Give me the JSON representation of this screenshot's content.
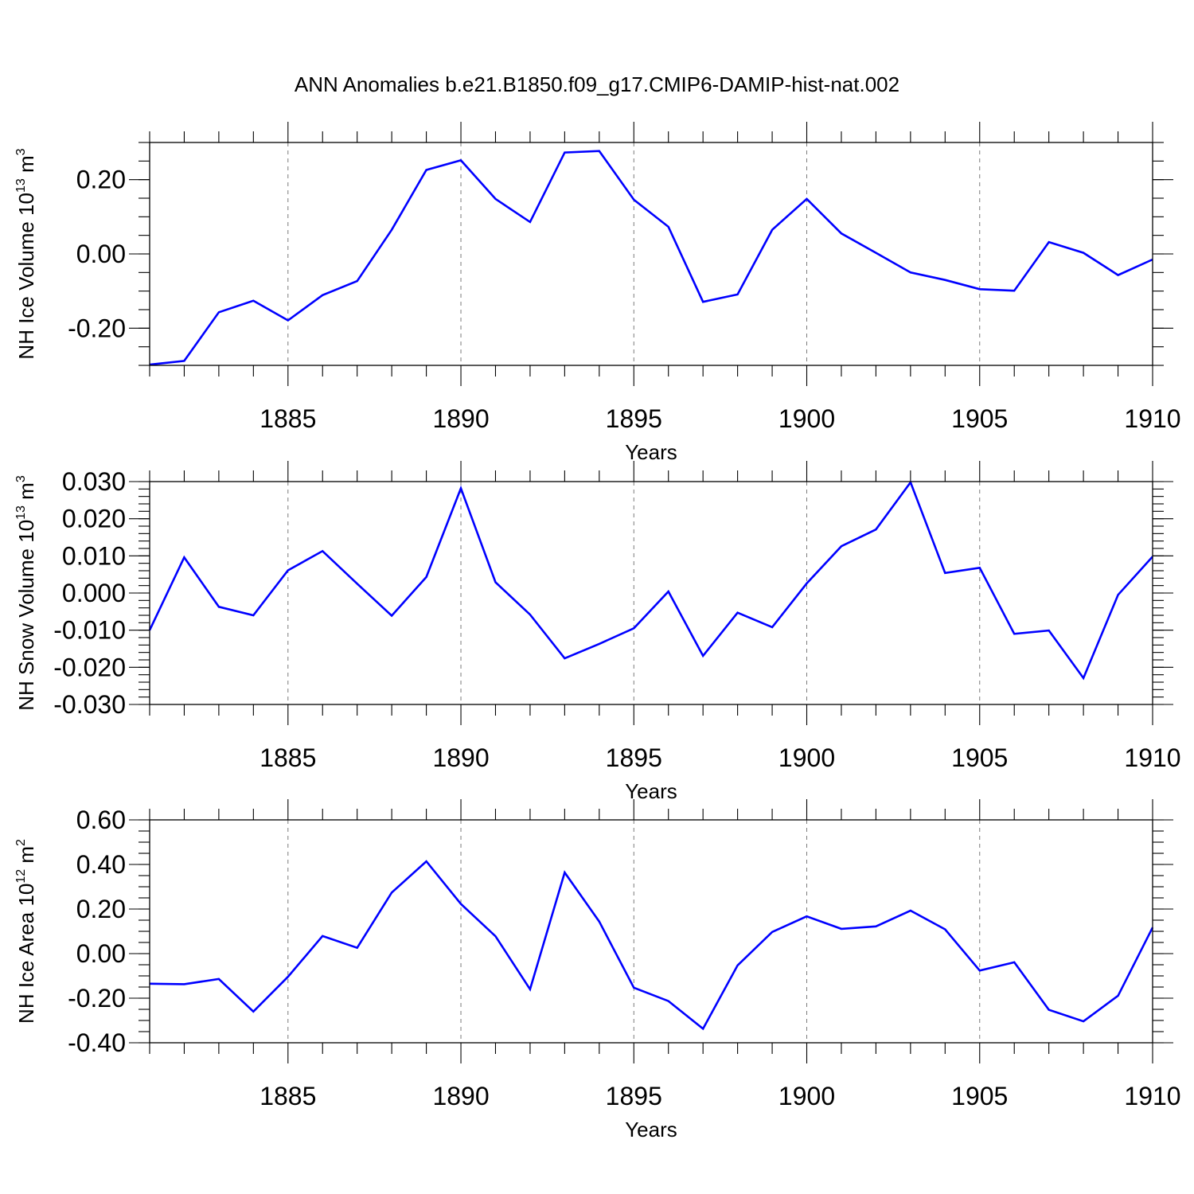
{
  "title": "ANN Anomalies b.e21.B1850.f09_g17.CMIP6-DAMIP-hist-nat.002",
  "line_color": "#0000ff",
  "chart_data": [
    {
      "type": "line",
      "name": "ice-volume",
      "xlabel": "Years",
      "ylabel": {
        "pre": "NH Ice Volume 10",
        "exp": "13",
        "unit": " m",
        "unit_exp": "3"
      },
      "xlim": [
        1881,
        1910
      ],
      "ylim": [
        -0.3,
        0.3
      ],
      "x_ticks": [
        1885,
        1890,
        1895,
        1900,
        1905,
        1910
      ],
      "x_tick_labels": [
        "1885",
        "1890",
        "1895",
        "1900",
        "1905",
        "1910"
      ],
      "y_ticks": [
        -0.2,
        0.0,
        0.2
      ],
      "y_tick_labels": [
        "-0.20",
        "0.00",
        "0.20"
      ],
      "y_minor_step": 0.05,
      "grid_x": [
        1885,
        1890,
        1895,
        1900,
        1905
      ],
      "x": [
        1881,
        1882,
        1883,
        1884,
        1885,
        1886,
        1887,
        1888,
        1889,
        1890,
        1891,
        1892,
        1893,
        1894,
        1895,
        1896,
        1897,
        1898,
        1899,
        1900,
        1901,
        1902,
        1903,
        1904,
        1905,
        1906,
        1907,
        1908,
        1909,
        1910
      ],
      "values": [
        -0.298,
        -0.288,
        -0.157,
        -0.126,
        -0.179,
        -0.111,
        -0.073,
        0.065,
        0.226,
        0.252,
        0.148,
        0.086,
        0.273,
        0.277,
        0.146,
        0.073,
        -0.129,
        -0.109,
        0.065,
        0.148,
        0.055,
        0.003,
        -0.05,
        -0.07,
        -0.095,
        -0.099,
        0.032,
        0.003,
        -0.057,
        -0.015
      ]
    },
    {
      "type": "line",
      "name": "snow-volume",
      "xlabel": "Years",
      "ylabel": {
        "pre": "NH Snow Volume 10",
        "exp": "13",
        "unit": " m",
        "unit_exp": "3"
      },
      "xlim": [
        1881,
        1910
      ],
      "ylim": [
        -0.03,
        0.03
      ],
      "x_ticks": [
        1885,
        1890,
        1895,
        1900,
        1905,
        1910
      ],
      "x_tick_labels": [
        "1885",
        "1890",
        "1895",
        "1900",
        "1905",
        "1910"
      ],
      "y_ticks": [
        -0.03,
        -0.02,
        -0.01,
        0.0,
        0.01,
        0.02,
        0.03
      ],
      "y_tick_labels": [
        "-0.030",
        "-0.020",
        "-0.010",
        "0.000",
        "0.010",
        "0.020",
        "0.030"
      ],
      "y_minor_step": 0.002,
      "grid_x": [
        1885,
        1890,
        1895,
        1900,
        1905
      ],
      "x": [
        1881,
        1882,
        1883,
        1884,
        1885,
        1886,
        1887,
        1888,
        1889,
        1890,
        1891,
        1892,
        1893,
        1894,
        1895,
        1896,
        1897,
        1898,
        1899,
        1900,
        1901,
        1902,
        1903,
        1904,
        1905,
        1906,
        1907,
        1908,
        1909,
        1910
      ],
      "values": [
        -0.01,
        0.0096,
        -0.0037,
        -0.006,
        0.0061,
        0.0113,
        0.0025,
        -0.0061,
        0.0043,
        0.0282,
        0.0029,
        -0.0058,
        -0.0176,
        -0.0137,
        -0.0095,
        0.0004,
        -0.0169,
        -0.0053,
        -0.0092,
        0.0026,
        0.0126,
        0.0171,
        0.0298,
        0.0054,
        0.0068,
        -0.011,
        -0.0101,
        -0.0229,
        -0.0005,
        0.0098
      ]
    },
    {
      "type": "line",
      "name": "ice-area",
      "xlabel": "Years",
      "ylabel": {
        "pre": "NH Ice Area 10",
        "exp": "12",
        "unit": " m",
        "unit_exp": "2"
      },
      "xlim": [
        1881,
        1910
      ],
      "ylim": [
        -0.4,
        0.6
      ],
      "x_ticks": [
        1885,
        1890,
        1895,
        1900,
        1905,
        1910
      ],
      "x_tick_labels": [
        "1885",
        "1890",
        "1895",
        "1900",
        "1905",
        "1910"
      ],
      "y_ticks": [
        -0.4,
        -0.2,
        0.0,
        0.2,
        0.4,
        0.6
      ],
      "y_tick_labels": [
        "-0.40",
        "-0.20",
        "0.00",
        "0.20",
        "0.40",
        "0.60"
      ],
      "y_minor_step": 0.05,
      "grid_x": [
        1885,
        1890,
        1895,
        1900,
        1905
      ],
      "x": [
        1881,
        1882,
        1883,
        1884,
        1885,
        1886,
        1887,
        1888,
        1889,
        1890,
        1891,
        1892,
        1893,
        1894,
        1895,
        1896,
        1897,
        1898,
        1899,
        1900,
        1901,
        1902,
        1903,
        1904,
        1905,
        1906,
        1907,
        1908,
        1909,
        1910
      ],
      "values": [
        -0.135,
        -0.137,
        -0.114,
        -0.26,
        -0.104,
        0.079,
        0.026,
        0.274,
        0.414,
        0.223,
        0.078,
        -0.16,
        0.364,
        0.144,
        -0.153,
        -0.213,
        -0.337,
        -0.053,
        0.097,
        0.167,
        0.111,
        0.122,
        0.193,
        0.109,
        -0.076,
        -0.039,
        -0.252,
        -0.304,
        -0.189,
        0.117
      ]
    }
  ]
}
